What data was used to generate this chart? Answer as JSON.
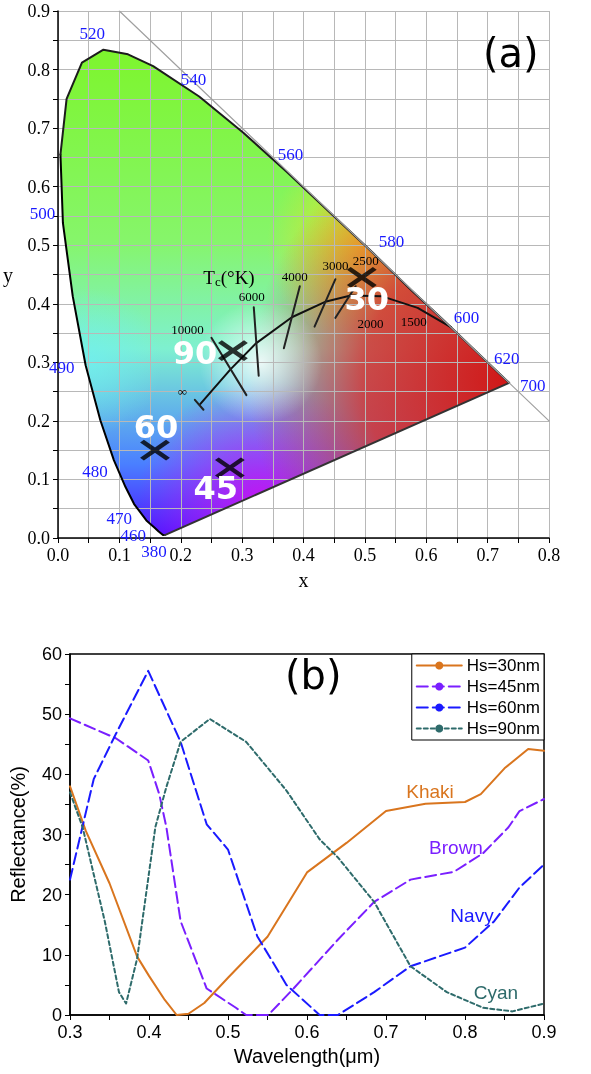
{
  "chart_data": [
    {
      "type": "scatter",
      "title": "(a)",
      "xlabel": "x",
      "ylabel": "y",
      "xlim": [
        0,
        0.8
      ],
      "ylim": [
        0,
        0.9
      ],
      "xticks": [
        {
          "value": 0,
          "label": "0.0"
        },
        {
          "value": 0.05,
          "label": null
        },
        0.1,
        {
          "value": 0.15,
          "label": null
        },
        0.2,
        {
          "value": 0.25,
          "label": null
        },
        0.3,
        {
          "value": 0.35,
          "label": null
        },
        0.4,
        {
          "value": 0.45,
          "label": null
        },
        0.5,
        {
          "value": 0.55,
          "label": null
        },
        0.6,
        {
          "value": 0.65,
          "label": null
        },
        0.7,
        {
          "value": 0.75,
          "label": null
        },
        0.8
      ],
      "yticks": [
        {
          "value": 0,
          "label": "0.0"
        },
        {
          "value": 0.05,
          "label": null
        },
        0.1,
        {
          "value": 0.15,
          "label": null
        },
        0.2,
        {
          "value": 0.25,
          "label": null
        },
        0.3,
        {
          "value": 0.35,
          "label": null
        },
        0.4,
        {
          "value": 0.45,
          "label": null
        },
        0.5,
        {
          "value": 0.55,
          "label": null
        },
        0.6,
        {
          "value": 0.65,
          "label": null
        },
        0.7,
        {
          "value": 0.75,
          "label": null
        },
        0.8,
        {
          "value": 0.85,
          "label": null
        },
        0.9
      ],
      "grid": true,
      "marker": "cross",
      "series": [
        {
          "type": "line",
          "color": "#000000",
          "marker": "none",
          "line_style": "solid",
          "x": [
            0.174,
            0.171,
            0.164,
            0.157,
            0.144,
            0.124,
            0.11,
            0.091,
            0.069,
            0.045,
            0.024,
            0.008,
            0.004
          ],
          "values": [
            0.005,
            0.005,
            0.011,
            0.018,
            0.03,
            0.058,
            0.087,
            0.133,
            0.201,
            0.295,
            0.413,
            0.538,
            0.655
          ]
        },
        {
          "type": "line",
          "color": "#1c1c1c",
          "marker": "none",
          "line_style": "solid",
          "x": [
            0.004,
            0.014,
            0.039,
            0.074,
            0.114,
            0.155,
            0.23,
            0.302,
            0.373,
            0.444,
            0.513,
            0.575,
            0.627,
            0.692,
            0.719,
            0.73,
            0.735
          ],
          "values": [
            0.655,
            0.75,
            0.812,
            0.834,
            0.826,
            0.806,
            0.754,
            0.692,
            0.625,
            0.555,
            0.487,
            0.424,
            0.373,
            0.308,
            0.281,
            0.27,
            0.265
          ]
        },
        {
          "type": "line",
          "color": "#333333",
          "marker": "none",
          "line_style": "solid",
          "x": [
            0.174,
            0.735
          ],
          "values": [
            0.005,
            0.265
          ]
        },
        {
          "type": "line",
          "color": "#111111",
          "marker": "none",
          "line_style": "solid",
          "x": [
            0.232,
            0.281,
            0.322,
            0.381,
            0.437,
            0.477,
            0.527,
            0.586,
            0.64
          ],
          "values": [
            0.229,
            0.288,
            0.332,
            0.377,
            0.404,
            0.414,
            0.413,
            0.393,
            0.36
          ]
        },
        {
          "type": "line",
          "color": "#222222",
          "marker": "none",
          "line_style": "solid",
          "x": [
            0.25,
            0.307
          ],
          "values": [
            0.342,
            0.244
          ]
        },
        {
          "type": "line",
          "color": "#222222",
          "marker": "none",
          "line_style": "solid",
          "x": [
            0.319,
            0.327
          ],
          "values": [
            0.394,
            0.277
          ]
        },
        {
          "type": "line",
          "color": "#222222",
          "marker": "none",
          "line_style": "solid",
          "x": [
            0.394,
            0.368
          ],
          "values": [
            0.43,
            0.324
          ]
        },
        {
          "type": "line",
          "color": "#222222",
          "marker": "none",
          "line_style": "solid",
          "x": [
            0.452,
            0.418
          ],
          "values": [
            0.442,
            0.361
          ]
        },
        {
          "type": "line",
          "color": "#222222",
          "marker": "none",
          "line_style": "solid",
          "x": [
            0.485,
            0.452
          ],
          "values": [
            0.43,
            0.376
          ]
        },
        {
          "type": "line",
          "color": "#222222",
          "marker": "none",
          "line_style": "solid",
          "x": [
            0.223,
            0.237
          ],
          "values": [
            0.236,
            0.219
          ]
        },
        {
          "type": "line",
          "color": "#a0a0a0",
          "marker": "none",
          "line_style": "solid",
          "x": [
            0.1,
            0.8
          ],
          "values": [
            0.9,
            0.2
          ]
        },
        {
          "color": "#000000",
          "x": [
            0.495,
            0.28,
            0.158,
            0.285
          ],
          "values": [
            0.445,
            0.12,
            0.15,
            0.32
          ]
        }
      ],
      "annotations": [
        "T$_{c}$(°K)",
        {
          "text": "380",
          "x": 0.174,
          "y": 0.005
        },
        {
          "text": "460",
          "x": 0.144,
          "y": 0.03
        },
        {
          "text": "470",
          "x": 0.124,
          "y": 0.058
        },
        {
          "text": "480",
          "x": 0.091,
          "y": 0.133
        },
        {
          "text": "490",
          "x": 0.045,
          "y": 0.295
        },
        {
          "text": "500",
          "x": 0.008,
          "y": 0.538
        },
        {
          "text": "520",
          "x": 0.074,
          "y": 0.834
        },
        {
          "text": "540",
          "x": 0.23,
          "y": 0.754
        },
        {
          "text": "560",
          "x": 0.373,
          "y": 0.625
        },
        {
          "text": "580",
          "x": 0.513,
          "y": 0.487
        },
        {
          "text": "600",
          "x": 0.627,
          "y": 0.373
        },
        {
          "text": "620",
          "x": 0.692,
          "y": 0.308
        },
        {
          "text": "700",
          "x": 0.735,
          "y": 0.265
        },
        {
          "text": "∞",
          "x": 0.232,
          "y": 0.229
        },
        {
          "text": "10000",
          "x": 0.25,
          "y": 0.342
        },
        {
          "text": "6000",
          "x": 0.319,
          "y": 0.394
        },
        {
          "text": "4000",
          "x": 0.394,
          "y": 0.43
        },
        {
          "text": "3000",
          "x": 0.452,
          "y": 0.442
        },
        {
          "text": "2500",
          "x": 0.485,
          "y": 0.43
        },
        {
          "text": "2000",
          "x": 0.527,
          "y": 0.413
        },
        {
          "text": "1500",
          "x": 0.586,
          "y": 0.393
        },
        {
          "text": "30",
          "x": 0.495,
          "y": 0.445
        },
        {
          "text": "45",
          "x": 0.28,
          "y": 0.12
        },
        {
          "text": "60",
          "x": 0.158,
          "y": 0.15
        },
        {
          "text": "90",
          "x": 0.285,
          "y": 0.32
        }
      ]
    },
    {
      "type": "line",
      "title": "(b)",
      "xlabel": "Wavelength(μm)",
      "ylabel": "Reflectance(%)",
      "xlim": [
        0.3,
        0.9
      ],
      "ylim": [
        0,
        60
      ],
      "xticks": [
        0.3,
        {
          "value": 0.35,
          "label": null
        },
        0.4,
        {
          "value": 0.45,
          "label": null
        },
        0.5,
        {
          "value": 0.55,
          "label": null
        },
        0.6,
        {
          "value": 0.65,
          "label": null
        },
        0.7,
        {
          "value": 0.75,
          "label": null
        },
        0.8,
        {
          "value": 0.85,
          "label": null
        },
        0.9
      ],
      "yticks": [
        0,
        {
          "value": 5,
          "label": null
        },
        10,
        {
          "value": 15,
          "label": null
        },
        20,
        {
          "value": 25,
          "label": null
        },
        30,
        {
          "value": 35,
          "label": null
        },
        40,
        {
          "value": 45,
          "label": null
        },
        50,
        {
          "value": 55,
          "label": null
        },
        60
      ],
      "legend": "top right",
      "marker": "none",
      "series": [
        {
          "name": "Hs=30nm",
          "color": "#d9751e",
          "line_style": "solid",
          "x": [
            0.3,
            0.32,
            0.35,
            0.385,
            0.4,
            0.42,
            0.435,
            0.45,
            0.47,
            0.5,
            0.55,
            0.6,
            0.65,
            0.7,
            0.75,
            0.8,
            0.82,
            0.85,
            0.88,
            0.9
          ],
          "values": [
            38,
            30.6,
            21.9,
            9.7,
            6.5,
            2.5,
            0,
            0.2,
            2,
            6.2,
            13,
            23.7,
            28.6,
            33.9,
            35.1,
            35.4,
            36.7,
            41,
            44.2,
            43.9
          ]
        },
        {
          "name": "Hs=45nm",
          "color": "#7a1fff",
          "line_style": "dashed",
          "x": [
            0.3,
            0.358,
            0.399,
            0.413,
            0.422,
            0.44,
            0.473,
            0.51,
            0.523,
            0.551,
            0.583,
            0.639,
            0.685,
            0.731,
            0.786,
            0.823,
            0.855,
            0.869,
            0.9
          ],
          "values": [
            49.3,
            46,
            42.3,
            36.7,
            31.2,
            15.6,
            4.4,
            1.2,
            0,
            0,
            4.4,
            12.5,
            18.8,
            22.5,
            23.8,
            26.9,
            31.2,
            33.9,
            35.9
          ]
        },
        {
          "name": "Hs=60nm",
          "color": "#1a1aff",
          "line_style": "dashed",
          "x": [
            0.3,
            0.33,
            0.358,
            0.399,
            0.44,
            0.473,
            0.5,
            0.537,
            0.574,
            0.616,
            0.639,
            0.685,
            0.731,
            0.8,
            0.837,
            0.869,
            0.9
          ],
          "values": [
            22.5,
            39.2,
            46.7,
            57.2,
            45.4,
            31.7,
            27.5,
            13.1,
            5,
            0,
            0,
            3.8,
            8.1,
            11.2,
            15.6,
            21.2,
            25
          ]
        },
        {
          "name": "Hs=90nm",
          "color": "#2e6b6b",
          "line_style": "dotted",
          "x": [
            0.3,
            0.316,
            0.344,
            0.362,
            0.371,
            0.385,
            0.408,
            0.422,
            0.44,
            0.477,
            0.523,
            0.574,
            0.616,
            0.639,
            0.685,
            0.731,
            0.777,
            0.823,
            0.86,
            0.9
          ],
          "values": [
            37,
            31.2,
            15.6,
            3.8,
            1.9,
            9.4,
            31.2,
            37.9,
            45.4,
            49.2,
            45.4,
            37.3,
            29.2,
            26.2,
            18.8,
            8.1,
            3.8,
            1.2,
            0.6,
            1.9
          ]
        }
      ],
      "annotations": [
        "Khaki",
        "Brown",
        "Navy",
        "Cyan"
      ]
    }
  ]
}
